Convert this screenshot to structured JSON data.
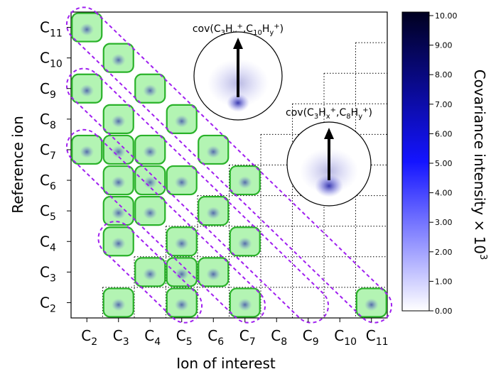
{
  "chart_data": {
    "type": "heatmap",
    "title": "",
    "xlabel": "Ion of interest",
    "ylabel": "Reference ion",
    "ions": [
      {
        "base": "C",
        "sub": "2"
      },
      {
        "base": "C",
        "sub": "3"
      },
      {
        "base": "C",
        "sub": "4"
      },
      {
        "base": "C",
        "sub": "5"
      },
      {
        "base": "C",
        "sub": "6"
      },
      {
        "base": "C",
        "sub": "7"
      },
      {
        "base": "C",
        "sub": "8"
      },
      {
        "base": "C",
        "sub": "9"
      },
      {
        "base": "C",
        "sub": "10"
      },
      {
        "base": "C",
        "sub": "11"
      }
    ],
    "x_categories": [
      "C2",
      "C3",
      "C4",
      "C5",
      "C6",
      "C7",
      "C8",
      "C9",
      "C10",
      "C11"
    ],
    "y_categories": [
      "C2",
      "C3",
      "C4",
      "C5",
      "C6",
      "C7",
      "C8",
      "C9",
      "C10",
      "C11"
    ],
    "highlighted_cells": [
      {
        "x": "C2",
        "y": "C11"
      },
      {
        "x": "C3",
        "y": "C10"
      },
      {
        "x": "C2",
        "y": "C9"
      },
      {
        "x": "C4",
        "y": "C9"
      },
      {
        "x": "C3",
        "y": "C8"
      },
      {
        "x": "C5",
        "y": "C8"
      },
      {
        "x": "C2",
        "y": "C7"
      },
      {
        "x": "C3",
        "y": "C7"
      },
      {
        "x": "C4",
        "y": "C7"
      },
      {
        "x": "C6",
        "y": "C7"
      },
      {
        "x": "C3",
        "y": "C6"
      },
      {
        "x": "C4",
        "y": "C6"
      },
      {
        "x": "C5",
        "y": "C6"
      },
      {
        "x": "C7",
        "y": "C6"
      },
      {
        "x": "C3",
        "y": "C5"
      },
      {
        "x": "C4",
        "y": "C5"
      },
      {
        "x": "C6",
        "y": "C5"
      },
      {
        "x": "C3",
        "y": "C4"
      },
      {
        "x": "C5",
        "y": "C4"
      },
      {
        "x": "C7",
        "y": "C4"
      },
      {
        "x": "C4",
        "y": "C3"
      },
      {
        "x": "C5",
        "y": "C3"
      },
      {
        "x": "C6",
        "y": "C3"
      },
      {
        "x": "C3",
        "y": "C2"
      },
      {
        "x": "C5",
        "y": "C2"
      },
      {
        "x": "C7",
        "y": "C2"
      },
      {
        "x": "C11",
        "y": "C2"
      }
    ],
    "diagonal_groups": [
      {
        "from": {
          "x": "C2",
          "y": "C11"
        },
        "to": {
          "x": "C11",
          "y": "C2"
        }
      },
      {
        "from": {
          "x": "C2",
          "y": "C9"
        },
        "to": {
          "x": "C9",
          "y": "C2"
        }
      },
      {
        "from": {
          "x": "C2",
          "y": "C7"
        },
        "to": {
          "x": "C7",
          "y": "C2"
        }
      },
      {
        "from": {
          "x": "C3",
          "y": "C4"
        },
        "to": {
          "x": "C5",
          "y": "C2"
        }
      }
    ],
    "colorbar": {
      "label": "Covariance intensity × 10",
      "label_exponent": "3",
      "min": 0,
      "max": 10,
      "ticks": [
        "0.00",
        "1.00",
        "2.00",
        "3.00",
        "4.00",
        "5.00",
        "6.00",
        "7.00",
        "8.00",
        "9.00",
        "10.00"
      ],
      "color_low": "#ffffff",
      "color_mid": "#1414ff",
      "color_high": "#000020"
    },
    "insets": [
      {
        "label_prefix": "cov(C",
        "s1": "3",
        "m1": "H",
        "s2": "x",
        "sup1": "+",
        "m2": ",C",
        "s3": "10",
        "m3": "H",
        "s4": "y",
        "sup2": "+",
        "label_suffix": ")"
      },
      {
        "label_prefix": "cov(C",
        "s1": "3",
        "m1": "H",
        "s2": "x",
        "sup1": "+",
        "m2": ",C",
        "s3": "8",
        "m3": "H",
        "s4": "y",
        "sup2": "+",
        "label_suffix": ")"
      }
    ],
    "colors": {
      "highlight_fill": "#9af09a",
      "highlight_stroke": "#2ab22a",
      "group_stroke": "#a020f0",
      "grid": "#000000"
    }
  }
}
